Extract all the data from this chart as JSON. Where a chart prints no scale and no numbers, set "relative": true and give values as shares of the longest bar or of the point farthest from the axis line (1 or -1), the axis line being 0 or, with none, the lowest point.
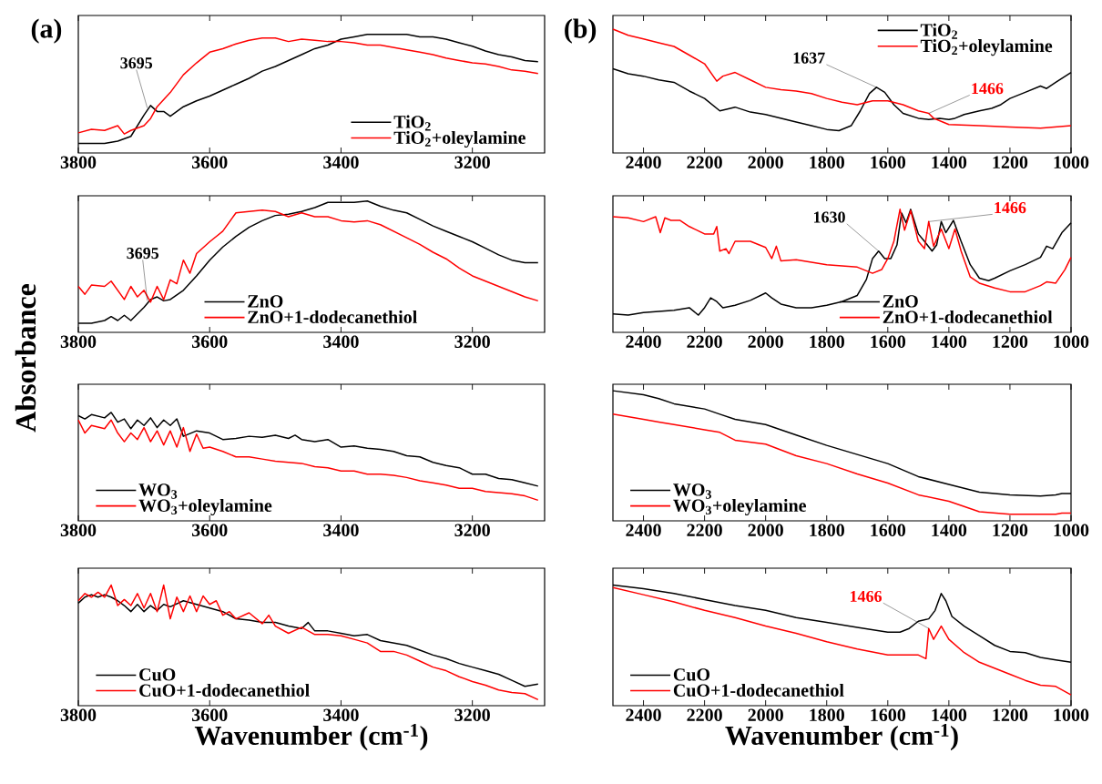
{
  "chart_data": [
    {
      "type": "line",
      "relative": true,
      "title": "(a)",
      "xlim": [
        3800,
        3090
      ],
      "xticks": [
        3800,
        3600,
        3400,
        3200
      ],
      "legend": "bottom right",
      "annotations": [
        {
          "text": "3695",
          "x": 3695,
          "y": 0.38
        }
      ],
      "series": [
        {
          "name": "TiO$_{2}$",
          "color": "#000000",
          "x": [
            3800,
            3760,
            3740,
            3720,
            3700,
            3690,
            3680,
            3670,
            3660,
            3640,
            3620,
            3600,
            3580,
            3560,
            3540,
            3520,
            3500,
            3480,
            3460,
            3440,
            3420,
            3400,
            3380,
            3360,
            3340,
            3320,
            3300,
            3280,
            3260,
            3240,
            3220,
            3200,
            3180,
            3160,
            3140,
            3120,
            3100
          ],
          "values": [
            0.08,
            0.08,
            0.1,
            0.14,
            0.32,
            0.4,
            0.35,
            0.35,
            0.31,
            0.39,
            0.44,
            0.48,
            0.53,
            0.58,
            0.63,
            0.69,
            0.73,
            0.78,
            0.83,
            0.88,
            0.91,
            0.96,
            0.98,
            1.0,
            1.0,
            1.0,
            1.0,
            0.98,
            0.98,
            0.96,
            0.93,
            0.9,
            0.86,
            0.83,
            0.81,
            0.78,
            0.77
          ]
        },
        {
          "name": "TiO$_{2}$+oleylamine",
          "color": "#ff0000",
          "x": [
            3800,
            3780,
            3760,
            3740,
            3730,
            3720,
            3700,
            3690,
            3680,
            3660,
            3640,
            3620,
            3600,
            3580,
            3560,
            3540,
            3520,
            3500,
            3480,
            3460,
            3440,
            3420,
            3400,
            3380,
            3360,
            3340,
            3320,
            3300,
            3280,
            3260,
            3240,
            3220,
            3200,
            3180,
            3160,
            3140,
            3120,
            3100
          ],
          "values": [
            0.17,
            0.2,
            0.19,
            0.23,
            0.16,
            0.19,
            0.23,
            0.29,
            0.39,
            0.51,
            0.66,
            0.76,
            0.85,
            0.88,
            0.92,
            0.95,
            0.97,
            0.97,
            0.94,
            0.96,
            0.95,
            0.94,
            0.94,
            0.93,
            0.91,
            0.91,
            0.89,
            0.87,
            0.85,
            0.83,
            0.8,
            0.78,
            0.76,
            0.75,
            0.73,
            0.7,
            0.69,
            0.67
          ]
        }
      ]
    },
    {
      "type": "line",
      "relative": true,
      "title": "(b)",
      "xlim": [
        2500,
        1000
      ],
      "xticks": [
        2400,
        2200,
        2000,
        1800,
        1600,
        1400,
        1200,
        1000
      ],
      "legend": "top right",
      "annotations": [
        {
          "text": "1637",
          "x": 1637,
          "y": 0.53
        },
        {
          "text": "1466",
          "x": 1466,
          "y": 0.32
        }
      ],
      "series": [
        {
          "name": "TiO$_{2}$",
          "color": "#000000",
          "x": [
            2500,
            2450,
            2400,
            2350,
            2300,
            2250,
            2200,
            2150,
            2100,
            2050,
            2000,
            1950,
            1900,
            1850,
            1800,
            1760,
            1720,
            1690,
            1660,
            1637,
            1610,
            1580,
            1550,
            1500,
            1466,
            1430,
            1400,
            1380,
            1350,
            1300,
            1260,
            1230,
            1200,
            1150,
            1100,
            1080,
            1050,
            1000
          ],
          "values": [
            0.68,
            0.64,
            0.62,
            0.59,
            0.57,
            0.5,
            0.44,
            0.34,
            0.37,
            0.33,
            0.31,
            0.28,
            0.25,
            0.22,
            0.19,
            0.18,
            0.22,
            0.34,
            0.48,
            0.53,
            0.49,
            0.39,
            0.32,
            0.28,
            0.27,
            0.28,
            0.27,
            0.28,
            0.31,
            0.34,
            0.36,
            0.39,
            0.44,
            0.49,
            0.54,
            0.52,
            0.57,
            0.65
          ]
        },
        {
          "name": "TiO$_{2}$+oleylamine",
          "color": "#ff0000",
          "x": [
            2500,
            2450,
            2400,
            2350,
            2300,
            2250,
            2200,
            2160,
            2140,
            2100,
            2050,
            2000,
            1950,
            1900,
            1850,
            1800,
            1750,
            1700,
            1650,
            1600,
            1550,
            1500,
            1466,
            1450,
            1420,
            1400,
            1300,
            1200,
            1100,
            1000
          ],
          "values": [
            1.0,
            0.95,
            0.92,
            0.89,
            0.86,
            0.79,
            0.72,
            0.58,
            0.62,
            0.65,
            0.59,
            0.53,
            0.51,
            0.5,
            0.48,
            0.44,
            0.41,
            0.39,
            0.42,
            0.42,
            0.39,
            0.34,
            0.32,
            0.28,
            0.25,
            0.23,
            0.22,
            0.21,
            0.2,
            0.22
          ]
        }
      ]
    },
    {
      "type": "line",
      "relative": true,
      "ylabel": "Absorbance",
      "xlim": [
        3800,
        3090
      ],
      "xticks": [
        3800,
        3600,
        3400,
        3200
      ],
      "legend": "bottom",
      "annotations": [
        {
          "text": "3695",
          "x": 3695,
          "y": 0.24
        }
      ],
      "series": [
        {
          "name": "ZnO",
          "color": "#000000",
          "x": [
            3800,
            3780,
            3760,
            3750,
            3740,
            3730,
            3720,
            3700,
            3690,
            3680,
            3670,
            3660,
            3640,
            3620,
            3600,
            3580,
            3560,
            3540,
            3520,
            3500,
            3480,
            3460,
            3440,
            3420,
            3400,
            3380,
            3360,
            3340,
            3320,
            3300,
            3280,
            3260,
            3240,
            3220,
            3200,
            3180,
            3160,
            3140,
            3120,
            3100
          ],
          "values": [
            0.07,
            0.07,
            0.09,
            0.12,
            0.09,
            0.13,
            0.09,
            0.19,
            0.25,
            0.27,
            0.24,
            0.25,
            0.32,
            0.43,
            0.55,
            0.65,
            0.73,
            0.8,
            0.85,
            0.89,
            0.9,
            0.92,
            0.95,
            0.99,
            0.99,
            0.99,
            1.0,
            0.96,
            0.93,
            0.91,
            0.86,
            0.81,
            0.77,
            0.73,
            0.69,
            0.64,
            0.59,
            0.55,
            0.53,
            0.53
          ]
        },
        {
          "name": "ZnO+1-dodecanethiol",
          "color": "#ff0000",
          "x": [
            3800,
            3790,
            3780,
            3760,
            3750,
            3740,
            3730,
            3720,
            3710,
            3700,
            3690,
            3680,
            3670,
            3660,
            3650,
            3640,
            3630,
            3620,
            3600,
            3580,
            3560,
            3540,
            3520,
            3500,
            3480,
            3460,
            3440,
            3420,
            3400,
            3380,
            3360,
            3340,
            3320,
            3300,
            3280,
            3260,
            3240,
            3220,
            3200,
            3180,
            3160,
            3140,
            3120,
            3100
          ],
          "values": [
            0.35,
            0.29,
            0.36,
            0.35,
            0.39,
            0.32,
            0.25,
            0.35,
            0.27,
            0.32,
            0.23,
            0.35,
            0.25,
            0.4,
            0.37,
            0.55,
            0.45,
            0.6,
            0.69,
            0.77,
            0.91,
            0.92,
            0.93,
            0.92,
            0.88,
            0.91,
            0.88,
            0.88,
            0.85,
            0.84,
            0.85,
            0.82,
            0.77,
            0.72,
            0.67,
            0.61,
            0.56,
            0.49,
            0.43,
            0.39,
            0.35,
            0.31,
            0.27,
            0.24
          ]
        }
      ]
    },
    {
      "type": "line",
      "relative": true,
      "xlim": [
        2500,
        1000
      ],
      "xticks": [
        2400,
        2200,
        2000,
        1800,
        1600,
        1400,
        1200,
        1000
      ],
      "legend": "bottom right",
      "annotations": [
        {
          "text": "1630",
          "x": 1630,
          "y": 0.66
        },
        {
          "text": "1466",
          "x": 1466,
          "y": 0.9
        }
      ],
      "series": [
        {
          "name": "ZnO",
          "color": "#000000",
          "x": [
            2500,
            2450,
            2400,
            2350,
            2300,
            2250,
            2220,
            2200,
            2180,
            2160,
            2140,
            2100,
            2050,
            2000,
            1980,
            1950,
            1900,
            1850,
            1800,
            1750,
            1700,
            1670,
            1650,
            1630,
            1610,
            1590,
            1570,
            1555,
            1540,
            1525,
            1500,
            1480,
            1455,
            1440,
            1425,
            1410,
            1385,
            1360,
            1330,
            1300,
            1270,
            1250,
            1200,
            1150,
            1100,
            1080,
            1060,
            1030,
            1000
          ],
          "values": [
            0.15,
            0.14,
            0.16,
            0.17,
            0.18,
            0.2,
            0.14,
            0.2,
            0.28,
            0.25,
            0.2,
            0.22,
            0.26,
            0.32,
            0.28,
            0.23,
            0.2,
            0.2,
            0.22,
            0.25,
            0.3,
            0.43,
            0.6,
            0.66,
            0.6,
            0.6,
            0.71,
            0.97,
            0.89,
            1.0,
            0.8,
            0.74,
            0.66,
            0.71,
            0.9,
            0.81,
            0.91,
            0.74,
            0.55,
            0.44,
            0.42,
            0.44,
            0.5,
            0.55,
            0.61,
            0.7,
            0.68,
            0.81,
            0.89
          ]
        },
        {
          "name": "ZnO+1-dodecanethiol",
          "color": "#ff0000",
          "x": [
            2500,
            2450,
            2400,
            2360,
            2345,
            2330,
            2310,
            2280,
            2250,
            2200,
            2170,
            2160,
            2150,
            2130,
            2120,
            2100,
            2050,
            2000,
            1980,
            1965,
            1950,
            1900,
            1850,
            1800,
            1750,
            1700,
            1650,
            1620,
            1600,
            1580,
            1560,
            1545,
            1525,
            1500,
            1480,
            1466,
            1450,
            1425,
            1400,
            1380,
            1360,
            1330,
            1300,
            1250,
            1200,
            1150,
            1100,
            1080,
            1050,
            1020,
            1000
          ],
          "values": [
            0.94,
            0.93,
            0.9,
            0.94,
            0.81,
            0.93,
            0.91,
            0.91,
            0.86,
            0.8,
            0.8,
            0.86,
            0.66,
            0.68,
            0.64,
            0.74,
            0.74,
            0.69,
            0.6,
            0.7,
            0.58,
            0.59,
            0.57,
            0.55,
            0.54,
            0.53,
            0.48,
            0.51,
            0.6,
            0.74,
            1.0,
            0.83,
            0.99,
            0.74,
            0.68,
            0.9,
            0.7,
            0.84,
            0.68,
            0.84,
            0.66,
            0.45,
            0.4,
            0.36,
            0.33,
            0.33,
            0.38,
            0.41,
            0.4,
            0.51,
            0.61
          ]
        }
      ]
    },
    {
      "type": "line",
      "relative": true,
      "xlim": [
        3800,
        3090
      ],
      "xticks": [
        3800,
        3600,
        3400,
        3200
      ],
      "legend": "bottom left",
      "series": [
        {
          "name": "WO$_{3}$",
          "color": "#000000",
          "x": [
            3800,
            3790,
            3780,
            3760,
            3750,
            3740,
            3730,
            3720,
            3710,
            3700,
            3690,
            3680,
            3670,
            3660,
            3650,
            3640,
            3620,
            3600,
            3580,
            3560,
            3540,
            3520,
            3500,
            3480,
            3470,
            3460,
            3440,
            3420,
            3400,
            3380,
            3360,
            3340,
            3320,
            3300,
            3280,
            3260,
            3240,
            3220,
            3200,
            3180,
            3160,
            3140,
            3120,
            3100
          ],
          "values": [
            0.97,
            0.94,
            0.98,
            0.95,
            1.0,
            0.91,
            0.94,
            0.85,
            0.93,
            0.88,
            0.95,
            0.86,
            0.93,
            0.88,
            0.94,
            0.78,
            0.83,
            0.81,
            0.75,
            0.76,
            0.78,
            0.77,
            0.79,
            0.76,
            0.79,
            0.75,
            0.73,
            0.75,
            0.68,
            0.69,
            0.67,
            0.66,
            0.64,
            0.6,
            0.59,
            0.54,
            0.51,
            0.49,
            0.43,
            0.43,
            0.39,
            0.38,
            0.35,
            0.32
          ]
        },
        {
          "name": "WO$_{3}$+oleylamine",
          "color": "#ff0000",
          "x": [
            3800,
            3790,
            3780,
            3760,
            3750,
            3740,
            3730,
            3720,
            3710,
            3700,
            3690,
            3680,
            3670,
            3660,
            3650,
            3640,
            3630,
            3620,
            3610,
            3600,
            3580,
            3560,
            3540,
            3520,
            3500,
            3480,
            3460,
            3440,
            3420,
            3400,
            3380,
            3360,
            3340,
            3320,
            3300,
            3280,
            3260,
            3240,
            3220,
            3200,
            3180,
            3160,
            3140,
            3120,
            3100
          ],
          "values": [
            0.93,
            0.81,
            0.88,
            0.85,
            0.93,
            0.81,
            0.73,
            0.81,
            0.75,
            0.86,
            0.73,
            0.83,
            0.7,
            0.83,
            0.68,
            0.86,
            0.64,
            0.8,
            0.67,
            0.68,
            0.64,
            0.59,
            0.59,
            0.57,
            0.55,
            0.54,
            0.53,
            0.5,
            0.49,
            0.46,
            0.46,
            0.43,
            0.43,
            0.42,
            0.4,
            0.37,
            0.35,
            0.33,
            0.3,
            0.3,
            0.27,
            0.26,
            0.25,
            0.23,
            0.19
          ]
        }
      ]
    },
    {
      "type": "line",
      "relative": true,
      "xlim": [
        2500,
        1000
      ],
      "xticks": [
        2400,
        2200,
        2000,
        1800,
        1600,
        1400,
        1200,
        1000
      ],
      "legend": "bottom left",
      "series": [
        {
          "name": "WO$_{3}$",
          "color": "#000000",
          "x": [
            2500,
            2400,
            2350,
            2300,
            2200,
            2150,
            2100,
            2000,
            1900,
            1800,
            1700,
            1600,
            1500,
            1400,
            1300,
            1200,
            1100,
            1050,
            1030,
            1000
          ],
          "values": [
            1.0,
            0.97,
            0.94,
            0.9,
            0.86,
            0.82,
            0.78,
            0.74,
            0.66,
            0.58,
            0.51,
            0.44,
            0.34,
            0.28,
            0.22,
            0.2,
            0.19,
            0.2,
            0.21,
            0.21
          ]
        },
        {
          "name": "WO$_{3}$+oleylamine",
          "color": "#ff0000",
          "x": [
            2500,
            2400,
            2350,
            2300,
            2200,
            2150,
            2100,
            2000,
            1900,
            1800,
            1700,
            1600,
            1500,
            1400,
            1300,
            1200,
            1100,
            1050,
            1030,
            1000
          ],
          "values": [
            0.82,
            0.78,
            0.76,
            0.74,
            0.7,
            0.68,
            0.62,
            0.59,
            0.5,
            0.44,
            0.36,
            0.29,
            0.2,
            0.15,
            0.07,
            0.05,
            0.05,
            0.05,
            0.06,
            0.06
          ]
        }
      ]
    },
    {
      "type": "line",
      "relative": true,
      "xlabel": "Wavenumber (cm$^{-1}$)",
      "xlim": [
        3800,
        3090
      ],
      "xticks": [
        3800,
        3600,
        3400,
        3200
      ],
      "legend": "bottom left",
      "series": [
        {
          "name": "CuO",
          "color": "#000000",
          "x": [
            3800,
            3790,
            3780,
            3770,
            3760,
            3750,
            3740,
            3730,
            3720,
            3710,
            3700,
            3690,
            3680,
            3670,
            3660,
            3640,
            3620,
            3600,
            3580,
            3560,
            3540,
            3520,
            3500,
            3480,
            3460,
            3450,
            3440,
            3420,
            3400,
            3380,
            3360,
            3340,
            3320,
            3300,
            3280,
            3260,
            3240,
            3220,
            3200,
            3180,
            3160,
            3140,
            3120,
            3100
          ],
          "values": [
            0.85,
            0.9,
            0.92,
            0.9,
            0.92,
            0.9,
            0.87,
            0.83,
            0.78,
            0.84,
            0.78,
            0.83,
            0.79,
            0.84,
            0.82,
            0.87,
            0.84,
            0.81,
            0.78,
            0.72,
            0.71,
            0.69,
            0.69,
            0.66,
            0.64,
            0.69,
            0.62,
            0.62,
            0.6,
            0.58,
            0.59,
            0.54,
            0.52,
            0.5,
            0.46,
            0.42,
            0.39,
            0.35,
            0.32,
            0.29,
            0.26,
            0.21,
            0.16,
            0.18
          ]
        },
        {
          "name": "CuO+1-dodecanethiol",
          "color": "#ff0000",
          "x": [
            3800,
            3790,
            3780,
            3770,
            3760,
            3750,
            3740,
            3730,
            3720,
            3710,
            3700,
            3690,
            3680,
            3670,
            3660,
            3650,
            3640,
            3630,
            3620,
            3610,
            3600,
            3590,
            3580,
            3570,
            3560,
            3540,
            3520,
            3510,
            3500,
            3480,
            3460,
            3440,
            3420,
            3400,
            3380,
            3360,
            3340,
            3320,
            3300,
            3280,
            3260,
            3240,
            3220,
            3200,
            3180,
            3160,
            3140,
            3120,
            3100
          ],
          "values": [
            0.87,
            0.93,
            0.9,
            0.94,
            0.9,
            1.0,
            0.83,
            0.88,
            0.83,
            0.93,
            0.81,
            0.93,
            0.78,
            1.0,
            0.72,
            0.9,
            0.78,
            0.91,
            0.78,
            0.91,
            0.84,
            0.87,
            0.75,
            0.78,
            0.72,
            0.77,
            0.68,
            0.75,
            0.66,
            0.6,
            0.65,
            0.59,
            0.59,
            0.58,
            0.55,
            0.52,
            0.45,
            0.45,
            0.42,
            0.37,
            0.32,
            0.29,
            0.24,
            0.2,
            0.17,
            0.13,
            0.11,
            0.1,
            0.05
          ]
        }
      ]
    },
    {
      "type": "line",
      "relative": true,
      "xlabel": "Wavenumber (cm$^{-1}$)",
      "xlim": [
        2500,
        1000
      ],
      "xticks": [
        2400,
        2200,
        2000,
        1800,
        1600,
        1400,
        1200,
        1000
      ],
      "legend": "bottom left",
      "annotations": [
        {
          "text": "1466",
          "x": 1466,
          "y": 0.64
        }
      ],
      "series": [
        {
          "name": "CuO",
          "color": "#000000",
          "x": [
            2500,
            2400,
            2300,
            2200,
            2100,
            2000,
            1900,
            1800,
            1700,
            1600,
            1560,
            1530,
            1500,
            1466,
            1445,
            1425,
            1410,
            1390,
            1350,
            1300,
            1250,
            1200,
            1150,
            1100,
            1050,
            1000
          ],
          "values": [
            1.0,
            0.97,
            0.93,
            0.88,
            0.83,
            0.79,
            0.73,
            0.69,
            0.65,
            0.61,
            0.61,
            0.64,
            0.7,
            0.72,
            0.79,
            0.93,
            0.87,
            0.74,
            0.66,
            0.58,
            0.5,
            0.45,
            0.44,
            0.4,
            0.38,
            0.36
          ]
        },
        {
          "name": "CuO+1-dodecanethiol",
          "color": "#ff0000",
          "x": [
            2500,
            2400,
            2300,
            2200,
            2100,
            2000,
            1900,
            1800,
            1700,
            1600,
            1500,
            1475,
            1466,
            1450,
            1425,
            1400,
            1350,
            1300,
            1250,
            1200,
            1150,
            1100,
            1050,
            1000
          ],
          "values": [
            0.98,
            0.92,
            0.86,
            0.79,
            0.73,
            0.66,
            0.6,
            0.53,
            0.47,
            0.42,
            0.42,
            0.39,
            0.64,
            0.55,
            0.66,
            0.55,
            0.44,
            0.36,
            0.31,
            0.26,
            0.21,
            0.17,
            0.16,
            0.09
          ]
        }
      ]
    }
  ]
}
